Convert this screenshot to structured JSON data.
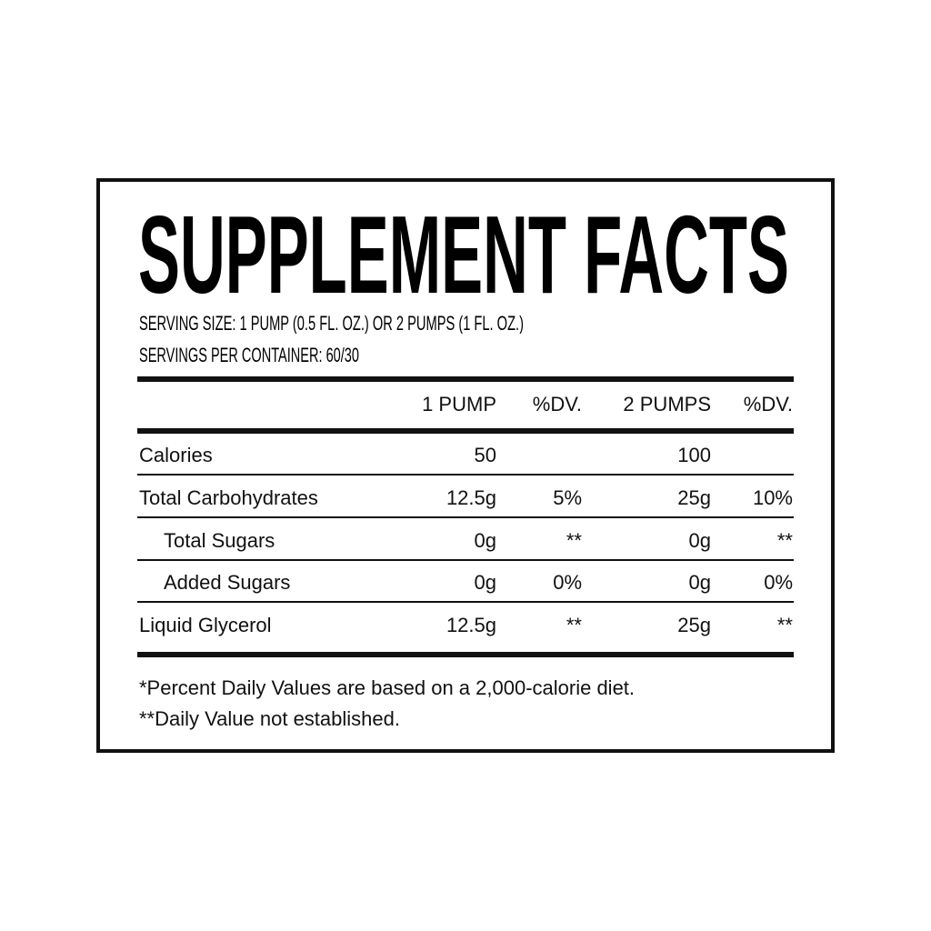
{
  "title": "SUPPLEMENT FACTS",
  "serving_size": "SERVING SIZE: 1 PUMP (0.5 FL. OZ.) OR 2 PUMPS (1 FL. OZ.)",
  "servings_per_container": "SERVINGS PER CONTAINER: 60/30",
  "columns": [
    "",
    "1 PUMP",
    "%DV.",
    "2 PUMPS",
    "%DV."
  ],
  "rows": [
    {
      "name": "Calories",
      "indent": false,
      "v1": "50",
      "dv1": "",
      "v2": "100",
      "dv2": ""
    },
    {
      "name": "Total Carbohydrates",
      "indent": false,
      "v1": "12.5g",
      "dv1": "5%",
      "v2": "25g",
      "dv2": "10%"
    },
    {
      "name": "Total Sugars",
      "indent": true,
      "v1": "0g",
      "dv1": "**",
      "v2": "0g",
      "dv2": "**"
    },
    {
      "name": "Added Sugars",
      "indent": true,
      "v1": "0g",
      "dv1": "0%",
      "v2": "0g",
      "dv2": "0%"
    },
    {
      "name": "Liquid Glycerol",
      "indent": false,
      "v1": "12.5g",
      "dv1": "**",
      "v2": "25g",
      "dv2": "**"
    }
  ],
  "footnotes": [
    "*Percent Daily Values are based on a 2,000-calorie diet.",
    "**Daily Value not established."
  ]
}
